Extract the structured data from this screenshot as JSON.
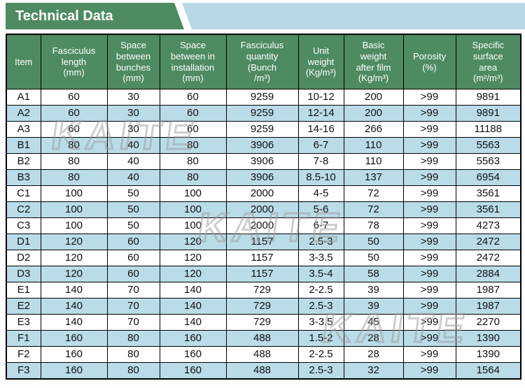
{
  "banner": {
    "title": "Technical Data",
    "green_color": "#4e8b62",
    "accent_band_color": "#b7d8e4"
  },
  "watermark": {
    "text": "KAITE"
  },
  "table": {
    "colors": {
      "header_bg": "#4e8b62",
      "header_text": "#ffffff",
      "row_bg": "#ffffff",
      "row_alt_bg": "#b9dce8",
      "border": "#000000"
    },
    "headers": [
      {
        "id": "item",
        "lines": [
          "Item"
        ]
      },
      {
        "id": "fasciculus-length",
        "lines": [
          "Fasciculus",
          "length",
          "(mm)"
        ]
      },
      {
        "id": "space-between-bunches",
        "lines": [
          "Space",
          "between",
          "bunches",
          "(mm)"
        ]
      },
      {
        "id": "space-between-in-installation",
        "lines": [
          "Space",
          "between in",
          "installation",
          "(mm)"
        ]
      },
      {
        "id": "fasciculus-quantity",
        "lines": [
          "Fasciculus",
          "quantity",
          "(Bunch",
          "/m³)"
        ]
      },
      {
        "id": "unit-weight",
        "lines": [
          "Unit",
          "weight",
          "(Kg/m³)"
        ]
      },
      {
        "id": "basic-weight-after-film",
        "lines": [
          "Basic",
          "weight",
          "after film",
          "(Kg/m³)"
        ]
      },
      {
        "id": "porosity",
        "lines": [
          "Porosity",
          "(%)"
        ]
      },
      {
        "id": "specific-surface-area",
        "lines": [
          "Specific",
          "surface",
          "area",
          "(m²/m³)"
        ]
      }
    ],
    "rows": [
      {
        "item": "A1",
        "values": [
          "60",
          "30",
          "60",
          "9259",
          "10-12",
          "200",
          ">99",
          "9891"
        ]
      },
      {
        "item": "A2",
        "values": [
          "60",
          "30",
          "60",
          "9259",
          "12-14",
          "200",
          ">99",
          "9891"
        ]
      },
      {
        "item": "A3",
        "values": [
          "60",
          "30",
          "60",
          "9259",
          "14-16",
          "266",
          ">99",
          "11188"
        ]
      },
      {
        "item": "B1",
        "values": [
          "80",
          "40",
          "80",
          "3906",
          "6-7",
          "110",
          ">99",
          "5563"
        ]
      },
      {
        "item": "B2",
        "values": [
          "80",
          "40",
          "80",
          "3906",
          "7-8",
          "110",
          ">99",
          "5563"
        ]
      },
      {
        "item": "B3",
        "values": [
          "80",
          "40",
          "80",
          "3906",
          "8.5-10",
          "137",
          ">99",
          "6954"
        ]
      },
      {
        "item": "C1",
        "values": [
          "100",
          "50",
          "100",
          "2000",
          "4-5",
          "72",
          ">99",
          "3561"
        ]
      },
      {
        "item": "C2",
        "values": [
          "100",
          "50",
          "100",
          "2000",
          "5-6",
          "72",
          ">99",
          "3561"
        ]
      },
      {
        "item": "C3",
        "values": [
          "100",
          "50",
          "100",
          "2000",
          "6-7",
          "78",
          ">99",
          "4273"
        ]
      },
      {
        "item": "D1",
        "values": [
          "120",
          "60",
          "120",
          "1157",
          "2.5-3",
          "50",
          ">99",
          "2472"
        ]
      },
      {
        "item": "D2",
        "values": [
          "120",
          "60",
          "120",
          "1157",
          "3-3.5",
          "50",
          ">99",
          "2472"
        ]
      },
      {
        "item": "D3",
        "values": [
          "120",
          "60",
          "120",
          "1157",
          "3.5-4",
          "58",
          ">99",
          "2884"
        ]
      },
      {
        "item": "E1",
        "values": [
          "140",
          "70",
          "140",
          "729",
          "2-2.5",
          "39",
          ">99",
          "1987"
        ]
      },
      {
        "item": "E2",
        "values": [
          "140",
          "70",
          "140",
          "729",
          "2.5-3",
          "39",
          ">99",
          "1987"
        ]
      },
      {
        "item": "E3",
        "values": [
          "140",
          "70",
          "140",
          "729",
          "3-3.5",
          "45",
          ">99",
          "2270"
        ]
      },
      {
        "item": "F1",
        "values": [
          "160",
          "80",
          "160",
          "488",
          "1.5-2",
          "28",
          ">99",
          "1390"
        ]
      },
      {
        "item": "F2",
        "values": [
          "160",
          "80",
          "160",
          "488",
          "2-2.5",
          "28",
          ">99",
          "1390"
        ]
      },
      {
        "item": "F3",
        "values": [
          "160",
          "80",
          "160",
          "488",
          "2.5-3",
          "32",
          ">99",
          "1564"
        ]
      }
    ]
  }
}
